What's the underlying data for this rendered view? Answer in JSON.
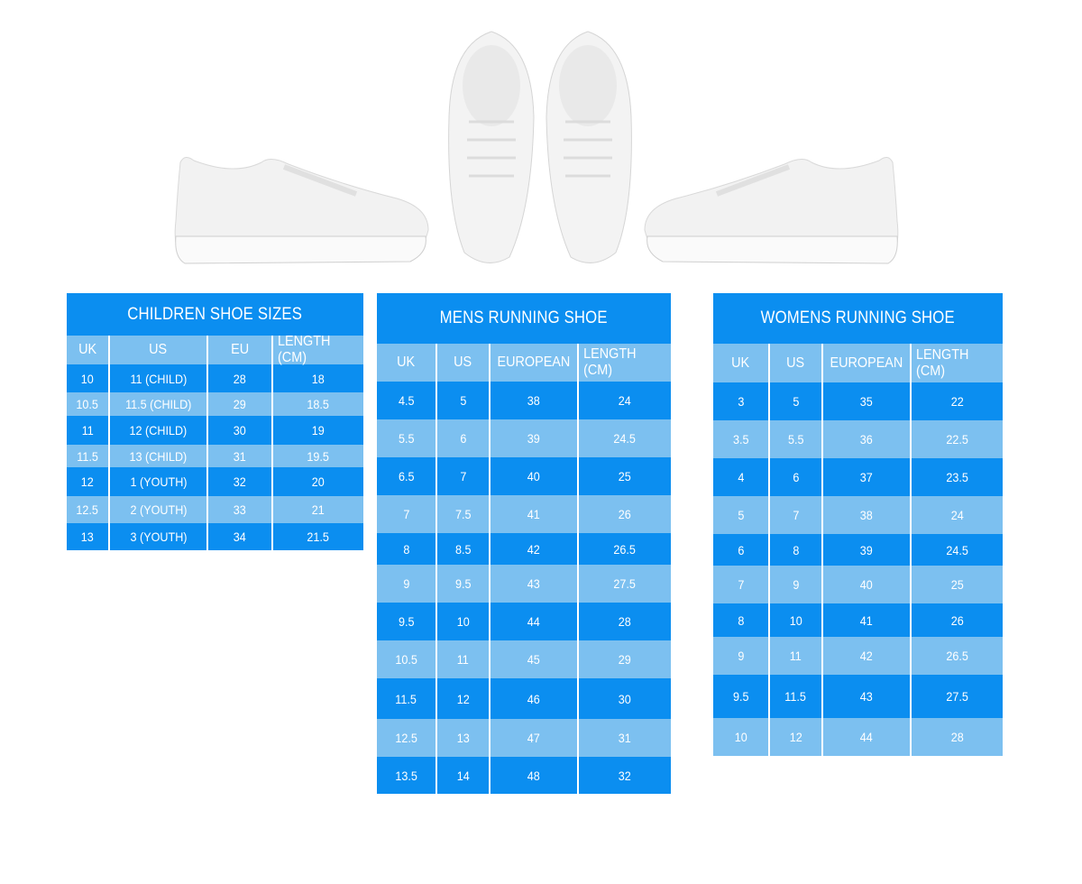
{
  "colors": {
    "dark_row": "#0b8ef0",
    "light_row": "#7cc0f0",
    "text": "#ffffff"
  },
  "shoe_images": [
    "side-view-left-icon",
    "top-view-pair-icon",
    "side-view-right-icon"
  ],
  "children": {
    "title": "CHILDREN SHOE SIZES",
    "headers": [
      "UK",
      "US",
      "EU",
      "LENGTH (CM)"
    ],
    "rows": [
      [
        "10",
        "11 (CHILD)",
        "28",
        "18"
      ],
      [
        "10.5",
        "11.5 (CHILD)",
        "29",
        "18.5"
      ],
      [
        "11",
        "12 (CHILD)",
        "30",
        "19"
      ],
      [
        "11.5",
        "13 (CHILD)",
        "31",
        "19.5"
      ],
      [
        "12",
        "1 (YOUTH)",
        "32",
        "20"
      ],
      [
        "12.5",
        "2 (YOUTH)",
        "33",
        "21"
      ],
      [
        "13",
        "3 (YOUTH)",
        "34",
        "21.5"
      ]
    ]
  },
  "mens": {
    "title": "MENS RUNNING SHOE",
    "headers": [
      "UK",
      "US",
      "EUROPEAN",
      "LENGTH (CM)"
    ],
    "rows": [
      [
        "4.5",
        "5",
        "38",
        "24"
      ],
      [
        "5.5",
        "6",
        "39",
        "24.5"
      ],
      [
        "6.5",
        "7",
        "40",
        "25"
      ],
      [
        "7",
        "7.5",
        "41",
        "26"
      ],
      [
        "8",
        "8.5",
        "42",
        "26.5"
      ],
      [
        "9",
        "9.5",
        "43",
        "27.5"
      ],
      [
        "9.5",
        "10",
        "44",
        "28"
      ],
      [
        "10.5",
        "11",
        "45",
        "29"
      ],
      [
        "11.5",
        "12",
        "46",
        "30"
      ],
      [
        "12.5",
        "13",
        "47",
        "31"
      ],
      [
        "13.5",
        "14",
        "48",
        "32"
      ]
    ]
  },
  "womens": {
    "title": "WOMENS RUNNING SHOE",
    "headers": [
      "UK",
      "US",
      "EUROPEAN",
      "LENGTH (CM)"
    ],
    "rows": [
      [
        "3",
        "5",
        "35",
        "22"
      ],
      [
        "3.5",
        "5.5",
        "36",
        "22.5"
      ],
      [
        "4",
        "6",
        "37",
        "23.5"
      ],
      [
        "5",
        "7",
        "38",
        "24"
      ],
      [
        "6",
        "8",
        "39",
        "24.5"
      ],
      [
        "7",
        "9",
        "40",
        "25"
      ],
      [
        "8",
        "10",
        "41",
        "26"
      ],
      [
        "9",
        "11",
        "42",
        "26.5"
      ],
      [
        "9.5",
        "11.5",
        "43",
        "27.5"
      ],
      [
        "10",
        "12",
        "44",
        "28"
      ]
    ]
  }
}
